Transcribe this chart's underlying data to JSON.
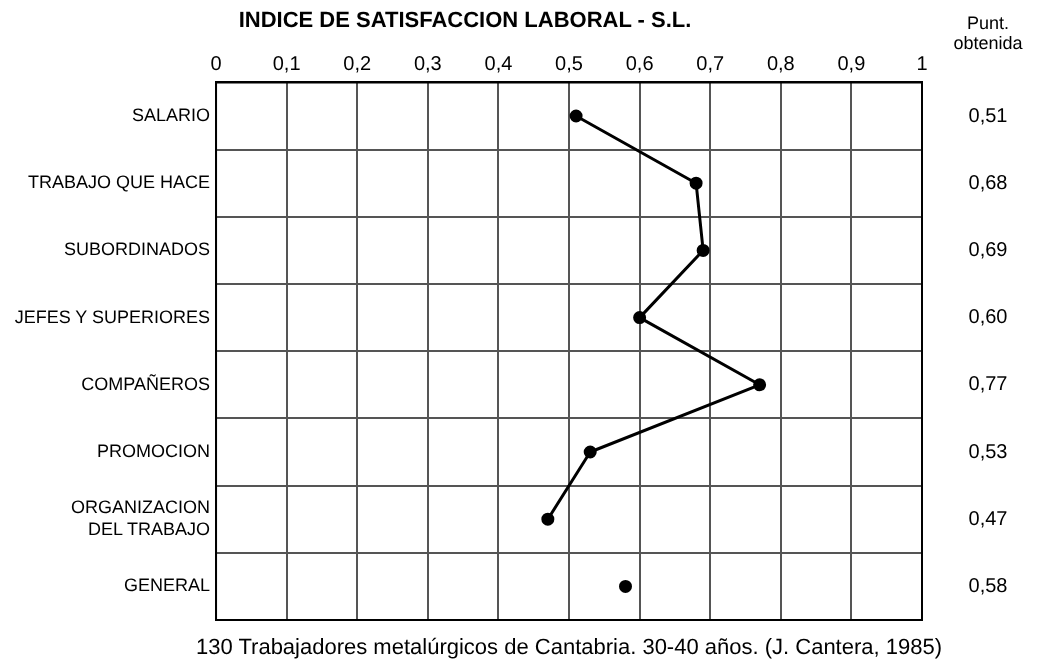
{
  "chart_data": {
    "type": "line",
    "orientation": "horizontal",
    "title": "INDICE DE SATISFACCION LABORAL - S.L.",
    "categories": [
      "SALARIO",
      "TRABAJO QUE HACE",
      "SUBORDINADOS",
      "JEFES Y SUPERIORES",
      "COMPAÑEROS",
      "PROMOCION",
      "ORGANIZACION DEL TRABAJO",
      "GENERAL"
    ],
    "series": [
      {
        "color": "#000000",
        "values": [
          0.51,
          0.68,
          0.69,
          0.6,
          0.77,
          0.53,
          0.47,
          null
        ],
        "value_labels": [
          "0,51",
          "0,68",
          "0,69",
          "0,60",
          "0,77",
          "0,53",
          "0,47",
          null
        ]
      },
      {
        "type": "scatter",
        "color": "#000000",
        "values": [
          null,
          null,
          null,
          null,
          null,
          null,
          null,
          0.58
        ]
      }
    ],
    "xlim": [
      0,
      1
    ],
    "xticks": [
      0,
      {
        "value": 0.1,
        "label": "0,1"
      },
      {
        "value": 0.2,
        "label": "0,2"
      },
      {
        "value": 0.3,
        "label": "0,3"
      },
      {
        "value": 0.4,
        "label": "0,4"
      },
      {
        "value": 0.5,
        "label": "0,5"
      },
      {
        "value": 0.6,
        "label": "0,6"
      },
      {
        "value": 0.7,
        "label": "0,7"
      },
      {
        "value": 0.8,
        "label": "0,8"
      },
      {
        "value": 0.9,
        "label": "0,9"
      },
      1
    ],
    "grid": true,
    "legend": false,
    "marker": "circle",
    "line_style": "solid",
    "annotations": [
      "Punt. obtenida",
      "0,58",
      "130 Trabajadores metalúrgicos de Cantabria. 30-40 años. (J. Cantera, 1985)"
    ]
  }
}
